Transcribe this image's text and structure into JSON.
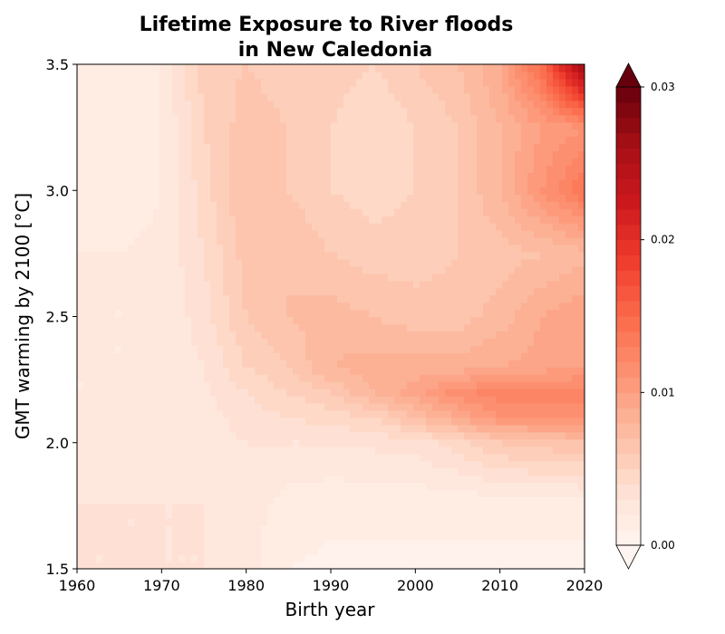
{
  "chart_data": {
    "type": "heatmap",
    "title_line1": "Lifetime Exposure to River floods",
    "title_line2": "in New Caledonia",
    "xlabel": "Birth year",
    "ylabel": "GMT warming by 2100 [°C]",
    "xlim": [
      1960,
      2020
    ],
    "ylim": [
      1.5,
      3.5
    ],
    "x_ticks": [
      "1960",
      "1970",
      "1980",
      "1990",
      "2000",
      "2010",
      "2020"
    ],
    "y_ticks": [
      "1.5",
      "2.0",
      "2.5",
      "3.0",
      "3.5"
    ],
    "colorbar": {
      "min": 0.0,
      "max": 0.03,
      "ticks": [
        "0.00",
        "0.01",
        "0.02",
        "0.03"
      ],
      "extend": "both",
      "colormap": "Reds"
    },
    "x": [
      1960,
      1965,
      1970,
      1975,
      1980,
      1985,
      1990,
      1995,
      2000,
      2005,
      2010,
      2015,
      2020
    ],
    "y": [
      1.5,
      1.75,
      2.0,
      2.1,
      2.2,
      2.3,
      2.5,
      2.75,
      3.0,
      3.25,
      3.5
    ],
    "z": [
      [
        0.003,
        0.003,
        0.003,
        0.003,
        0.0025,
        0.001,
        0.0008,
        0.0008,
        0.0008,
        0.0008,
        0.0008,
        0.0008,
        0.0008
      ],
      [
        0.003,
        0.003,
        0.003,
        0.003,
        0.0025,
        0.0015,
        0.0012,
        0.0012,
        0.0012,
        0.0012,
        0.0012,
        0.0012,
        0.0012
      ],
      [
        0.0025,
        0.0025,
        0.0025,
        0.0025,
        0.003,
        0.003,
        0.003,
        0.0032,
        0.0035,
        0.0045,
        0.006,
        0.0065,
        0.007
      ],
      [
        0.0022,
        0.0022,
        0.0022,
        0.0025,
        0.0035,
        0.004,
        0.0045,
        0.005,
        0.007,
        0.009,
        0.011,
        0.011,
        0.011
      ],
      [
        0.002,
        0.002,
        0.0022,
        0.0028,
        0.004,
        0.005,
        0.006,
        0.008,
        0.0095,
        0.0115,
        0.0125,
        0.0125,
        0.0125
      ],
      [
        0.002,
        0.002,
        0.0022,
        0.003,
        0.005,
        0.006,
        0.008,
        0.0085,
        0.0085,
        0.0085,
        0.009,
        0.0095,
        0.01
      ],
      [
        0.002,
        0.002,
        0.0022,
        0.0035,
        0.006,
        0.007,
        0.0075,
        0.007,
        0.0065,
        0.0065,
        0.0075,
        0.009,
        0.01
      ],
      [
        0.002,
        0.002,
        0.0022,
        0.004,
        0.0065,
        0.007,
        0.006,
        0.0055,
        0.0055,
        0.006,
        0.0065,
        0.007,
        0.0075
      ],
      [
        0.0015,
        0.0015,
        0.002,
        0.0045,
        0.007,
        0.006,
        0.005,
        0.0045,
        0.005,
        0.006,
        0.008,
        0.011,
        0.014
      ],
      [
        0.0015,
        0.0015,
        0.002,
        0.005,
        0.0065,
        0.006,
        0.005,
        0.004,
        0.005,
        0.006,
        0.008,
        0.01,
        0.011
      ],
      [
        0.0015,
        0.0015,
        0.002,
        0.0055,
        0.006,
        0.0055,
        0.0055,
        0.005,
        0.006,
        0.007,
        0.009,
        0.015,
        0.027
      ]
    ]
  }
}
